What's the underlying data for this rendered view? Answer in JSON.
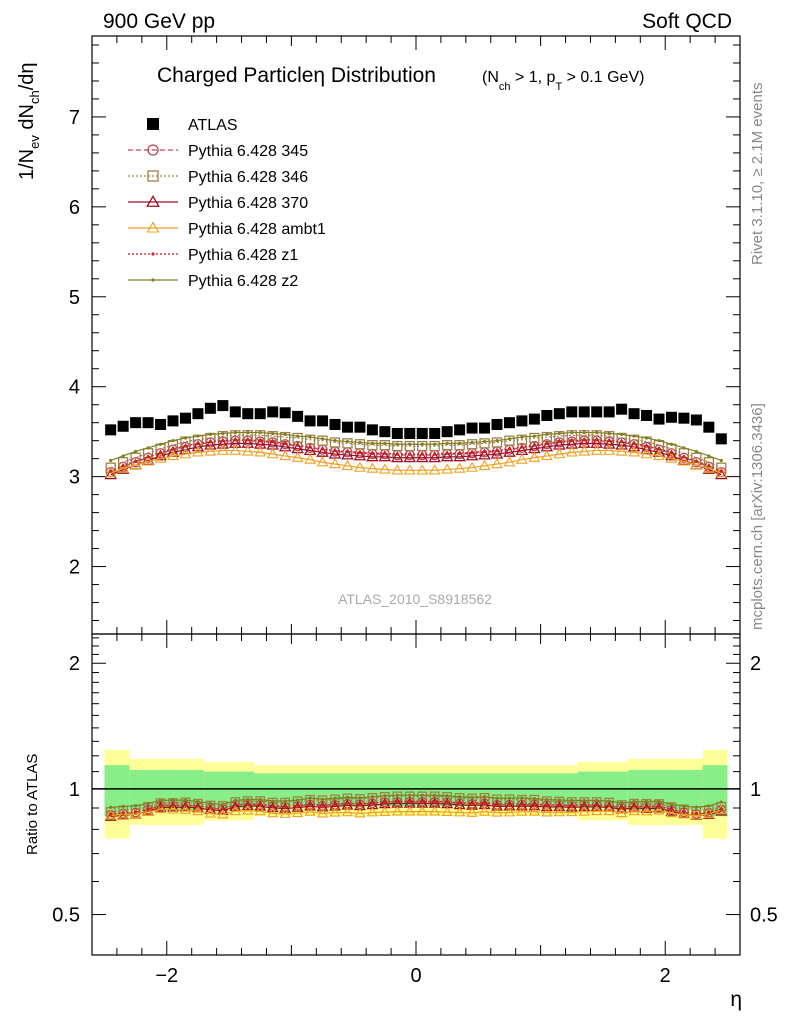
{
  "header": {
    "left": "900 GeV pp",
    "right": "Soft QCD"
  },
  "side": {
    "rivet": "Rivet 3.1.10, ≥ 2.1M events",
    "mcplots": "mcplots.cern.ch [arXiv:1306.3436]"
  },
  "chart_data": {
    "type": "scatter",
    "title": "Charged Particleη Distribution",
    "title_sub": "(N_ch > 1, p_T > 0.1 GeV)",
    "ylabel": "1/N_ev dN_ch/dη",
    "xlabel": "η",
    "ratio_ylabel": "Ratio to ATLAS",
    "watermark": "ATLAS_2010_S8918562",
    "xlim": [
      -2.6,
      2.6
    ],
    "ylim": [
      1.25,
      7.9
    ],
    "ratio_ylim": [
      0.4,
      2.35
    ],
    "xticks": [
      "−2",
      "0",
      "2"
    ],
    "yticks": [
      "2",
      "3",
      "4",
      "5",
      "6",
      "7"
    ],
    "ratio_yticks": [
      "0.5",
      "1",
      "2"
    ],
    "legend_position": "top-left",
    "x": [
      -2.45,
      -2.35,
      -2.25,
      -2.15,
      -2.05,
      -1.95,
      -1.85,
      -1.75,
      -1.65,
      -1.55,
      -1.45,
      -1.35,
      -1.25,
      -1.15,
      -1.05,
      -0.95,
      -0.85,
      -0.75,
      -0.65,
      -0.55,
      -0.45,
      -0.35,
      -0.25,
      -0.15,
      -0.05,
      0.05,
      0.15,
      0.25,
      0.35,
      0.45,
      0.55,
      0.65,
      0.75,
      0.85,
      0.95,
      1.05,
      1.15,
      1.25,
      1.35,
      1.45,
      1.55,
      1.65,
      1.75,
      1.85,
      1.95,
      2.05,
      2.15,
      2.25,
      2.35,
      2.45
    ],
    "series": [
      {
        "name": "ATLAS",
        "color": "#000000",
        "marker": "square",
        "values": [
          3.52,
          3.56,
          3.6,
          3.6,
          3.58,
          3.62,
          3.65,
          3.7,
          3.76,
          3.79,
          3.72,
          3.7,
          3.7,
          3.72,
          3.71,
          3.67,
          3.62,
          3.62,
          3.58,
          3.55,
          3.55,
          3.52,
          3.5,
          3.48,
          3.48,
          3.48,
          3.48,
          3.5,
          3.52,
          3.54,
          3.54,
          3.58,
          3.6,
          3.62,
          3.64,
          3.68,
          3.7,
          3.72,
          3.72,
          3.72,
          3.72,
          3.75,
          3.7,
          3.68,
          3.64,
          3.66,
          3.65,
          3.63,
          3.55,
          3.42
        ]
      },
      {
        "name": "Pythia 6.428 345",
        "color": "#c04058",
        "marker": "circle",
        "dash": "5,3",
        "values": [
          3.05,
          3.11,
          3.16,
          3.21,
          3.26,
          3.3,
          3.33,
          3.36,
          3.38,
          3.39,
          3.4,
          3.4,
          3.39,
          3.38,
          3.36,
          3.34,
          3.32,
          3.3,
          3.28,
          3.27,
          3.26,
          3.25,
          3.25,
          3.24,
          3.24,
          3.24,
          3.24,
          3.25,
          3.25,
          3.26,
          3.27,
          3.28,
          3.3,
          3.32,
          3.34,
          3.36,
          3.38,
          3.39,
          3.4,
          3.4,
          3.39,
          3.38,
          3.36,
          3.33,
          3.3,
          3.26,
          3.21,
          3.16,
          3.11,
          3.05
        ]
      },
      {
        "name": "Pythia 6.428 346",
        "color": "#a08048",
        "marker": "square-open",
        "dash": "2,2",
        "values": [
          3.1,
          3.16,
          3.21,
          3.26,
          3.31,
          3.35,
          3.39,
          3.41,
          3.43,
          3.45,
          3.46,
          3.46,
          3.46,
          3.45,
          3.44,
          3.43,
          3.41,
          3.4,
          3.38,
          3.37,
          3.36,
          3.35,
          3.35,
          3.34,
          3.34,
          3.34,
          3.34,
          3.35,
          3.35,
          3.36,
          3.37,
          3.38,
          3.4,
          3.41,
          3.43,
          3.44,
          3.45,
          3.46,
          3.46,
          3.46,
          3.45,
          3.43,
          3.41,
          3.39,
          3.35,
          3.31,
          3.26,
          3.21,
          3.16,
          3.1
        ]
      },
      {
        "name": "Pythia 6.428 370",
        "color": "#a01020",
        "marker": "triangle",
        "values": [
          3.02,
          3.08,
          3.13,
          3.18,
          3.23,
          3.27,
          3.3,
          3.33,
          3.35,
          3.36,
          3.37,
          3.37,
          3.36,
          3.35,
          3.33,
          3.31,
          3.29,
          3.27,
          3.25,
          3.24,
          3.23,
          3.22,
          3.22,
          3.21,
          3.21,
          3.21,
          3.21,
          3.22,
          3.22,
          3.23,
          3.24,
          3.25,
          3.27,
          3.29,
          3.31,
          3.33,
          3.35,
          3.36,
          3.37,
          3.37,
          3.36,
          3.35,
          3.33,
          3.3,
          3.27,
          3.23,
          3.18,
          3.13,
          3.08,
          3.02
        ]
      },
      {
        "name": "Pythia 6.428 ambt1",
        "color": "#f0a020",
        "marker": "triangle-open",
        "values": [
          3.04,
          3.09,
          3.13,
          3.17,
          3.2,
          3.23,
          3.25,
          3.27,
          3.28,
          3.29,
          3.29,
          3.28,
          3.27,
          3.25,
          3.23,
          3.21,
          3.19,
          3.16,
          3.14,
          3.12,
          3.1,
          3.09,
          3.08,
          3.07,
          3.07,
          3.07,
          3.07,
          3.08,
          3.09,
          3.1,
          3.12,
          3.14,
          3.16,
          3.19,
          3.21,
          3.23,
          3.25,
          3.27,
          3.28,
          3.29,
          3.29,
          3.28,
          3.27,
          3.25,
          3.23,
          3.2,
          3.17,
          3.13,
          3.09,
          3.04
        ]
      },
      {
        "name": "Pythia 6.428 z1",
        "color": "#cc2222",
        "marker": "dot",
        "dash": "2,2",
        "values": [
          3.06,
          3.12,
          3.17,
          3.22,
          3.27,
          3.31,
          3.34,
          3.37,
          3.39,
          3.4,
          3.41,
          3.41,
          3.4,
          3.39,
          3.37,
          3.35,
          3.33,
          3.31,
          3.29,
          3.28,
          3.27,
          3.26,
          3.26,
          3.25,
          3.25,
          3.25,
          3.25,
          3.26,
          3.26,
          3.27,
          3.28,
          3.29,
          3.31,
          3.33,
          3.35,
          3.37,
          3.39,
          3.4,
          3.41,
          3.41,
          3.4,
          3.39,
          3.37,
          3.34,
          3.31,
          3.27,
          3.22,
          3.17,
          3.12,
          3.06
        ]
      },
      {
        "name": "Pythia 6.428 z2",
        "color": "#808020",
        "marker": "dot",
        "values": [
          3.18,
          3.23,
          3.28,
          3.32,
          3.36,
          3.4,
          3.43,
          3.45,
          3.47,
          3.48,
          3.49,
          3.49,
          3.49,
          3.48,
          3.47,
          3.45,
          3.44,
          3.42,
          3.4,
          3.39,
          3.38,
          3.37,
          3.37,
          3.36,
          3.36,
          3.36,
          3.36,
          3.37,
          3.37,
          3.38,
          3.39,
          3.4,
          3.42,
          3.44,
          3.45,
          3.47,
          3.48,
          3.49,
          3.49,
          3.49,
          3.48,
          3.47,
          3.45,
          3.43,
          3.4,
          3.36,
          3.32,
          3.28,
          3.23,
          3.18
        ]
      }
    ],
    "ratio_bands": {
      "edges": [
        -2.5,
        -2.3,
        -1.7,
        -1.3,
        1.3,
        1.7,
        2.3,
        2.5
      ],
      "inner_half": [
        0.14,
        0.11,
        0.1,
        0.09,
        0.1,
        0.11,
        0.14
      ],
      "outer_half": [
        0.24,
        0.18,
        0.16,
        0.14,
        0.16,
        0.18,
        0.24
      ]
    }
  }
}
